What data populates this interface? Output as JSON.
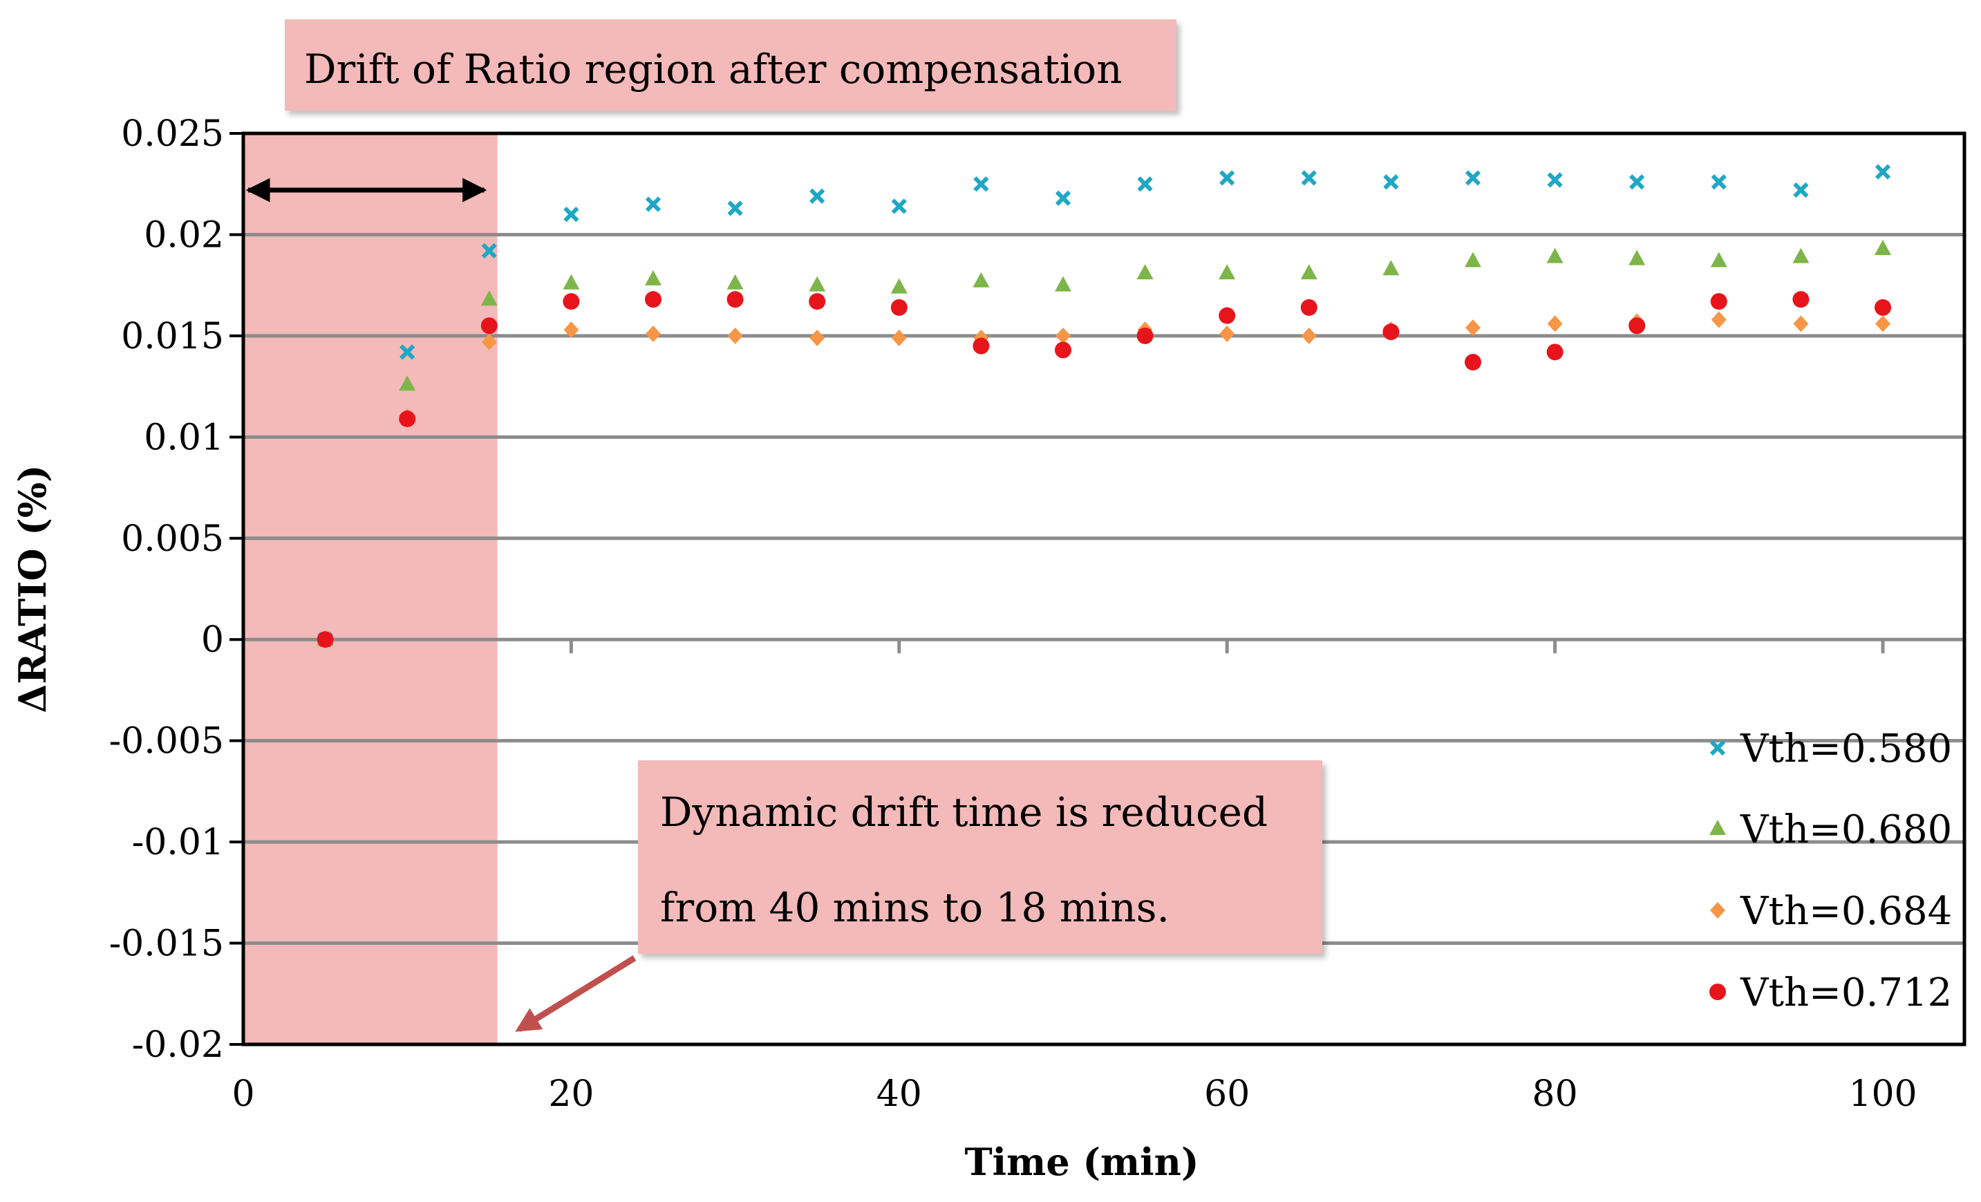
{
  "chart_data": {
    "type": "scatter",
    "title": "",
    "xlabel": "Time (min)",
    "ylabel": "ΔRATIO (%)",
    "xlim": [
      0,
      100
    ],
    "ylim": [
      -0.02,
      0.025
    ],
    "x_ticks": [
      0,
      20,
      40,
      60,
      80,
      100
    ],
    "x_tick_labels": [
      "0",
      "20",
      "40",
      "60",
      "80",
      "100"
    ],
    "y_ticks": [
      0.025,
      0.02,
      0.015,
      0.01,
      0.005,
      0,
      -0.005,
      -0.01,
      -0.015,
      -0.02
    ],
    "y_tick_labels": [
      "0.025",
      "0.02",
      "0.015",
      "0.01",
      "0.005",
      "0",
      "-0.005",
      "-0.01",
      "-0.015",
      "-0.02"
    ],
    "grid": "horizontal",
    "legend_position": "bottom-right",
    "series": [
      {
        "name": "Vth=0.580",
        "marker": "x",
        "color": "#1FA7C4",
        "points": [
          [
            5,
            0
          ],
          [
            10,
            0.0142
          ],
          [
            15,
            0.0192
          ],
          [
            20,
            0.021
          ],
          [
            25,
            0.0215
          ],
          [
            30,
            0.0213
          ],
          [
            35,
            0.0219
          ],
          [
            40,
            0.0214
          ],
          [
            45,
            0.0225
          ],
          [
            50,
            0.0218
          ],
          [
            55,
            0.0225
          ],
          [
            60,
            0.0228
          ],
          [
            65,
            0.0228
          ],
          [
            70,
            0.0226
          ],
          [
            75,
            0.0228
          ],
          [
            80,
            0.0227
          ],
          [
            85,
            0.0226
          ],
          [
            90,
            0.0226
          ],
          [
            95,
            0.0222
          ],
          [
            100,
            0.0231
          ]
        ]
      },
      {
        "name": "Vth=0.680",
        "marker": "triangle",
        "color": "#7DB548",
        "points": [
          [
            5,
            0
          ],
          [
            10,
            0.0126
          ],
          [
            15,
            0.0168
          ],
          [
            20,
            0.0176
          ],
          [
            25,
            0.0178
          ],
          [
            30,
            0.0176
          ],
          [
            35,
            0.0175
          ],
          [
            40,
            0.0174
          ],
          [
            45,
            0.0177
          ],
          [
            50,
            0.0175
          ],
          [
            55,
            0.0181
          ],
          [
            60,
            0.0181
          ],
          [
            65,
            0.0181
          ],
          [
            70,
            0.0183
          ],
          [
            75,
            0.0187
          ],
          [
            80,
            0.0189
          ],
          [
            85,
            0.0188
          ],
          [
            90,
            0.0187
          ],
          [
            95,
            0.0189
          ],
          [
            100,
            0.0193
          ]
        ]
      },
      {
        "name": "Vth=0.684",
        "marker": "diamond",
        "color": "#F79646",
        "points": [
          [
            5,
            0
          ],
          [
            10,
            0.011
          ],
          [
            15,
            0.0147
          ],
          [
            20,
            0.0153
          ],
          [
            25,
            0.0151
          ],
          [
            30,
            0.015
          ],
          [
            35,
            0.0149
          ],
          [
            40,
            0.0149
          ],
          [
            45,
            0.0149
          ],
          [
            50,
            0.015
          ],
          [
            55,
            0.0153
          ],
          [
            60,
            0.0151
          ],
          [
            65,
            0.015
          ],
          [
            70,
            0.0153
          ],
          [
            75,
            0.0154
          ],
          [
            80,
            0.0156
          ],
          [
            85,
            0.0157
          ],
          [
            90,
            0.0158
          ],
          [
            95,
            0.0156
          ],
          [
            100,
            0.0156
          ]
        ]
      },
      {
        "name": "Vth=0.712",
        "marker": "circle",
        "color": "#E8141B",
        "points": [
          [
            5,
            0
          ],
          [
            10,
            0.0109
          ],
          [
            15,
            0.0155
          ],
          [
            20,
            0.0167
          ],
          [
            25,
            0.0168
          ],
          [
            30,
            0.0168
          ],
          [
            35,
            0.0167
          ],
          [
            40,
            0.0164
          ],
          [
            45,
            0.0145
          ],
          [
            50,
            0.0143
          ],
          [
            55,
            0.015
          ],
          [
            60,
            0.016
          ],
          [
            65,
            0.0164
          ],
          [
            70,
            0.0152
          ],
          [
            75,
            0.0137
          ],
          [
            80,
            0.0142
          ],
          [
            85,
            0.0155
          ],
          [
            90,
            0.0167
          ],
          [
            95,
            0.0168
          ],
          [
            100,
            0.0164
          ]
        ]
      }
    ],
    "shaded_region": {
      "x_range": [
        0,
        15.5
      ],
      "color": "#F4B9B9"
    },
    "span_arrow": {
      "x_range": [
        0.3,
        14.7
      ],
      "y": 0.0222
    },
    "annotations": [
      {
        "id": "drift-region",
        "lines": [
          "Drift of Ratio region after compensation"
        ]
      },
      {
        "id": "dynamic-drift",
        "lines": [
          "Dynamic drift time is reduced",
          "from 40 mins to 18 mins."
        ],
        "arrow_to": [
          16.5,
          -0.02
        ]
      }
    ]
  }
}
